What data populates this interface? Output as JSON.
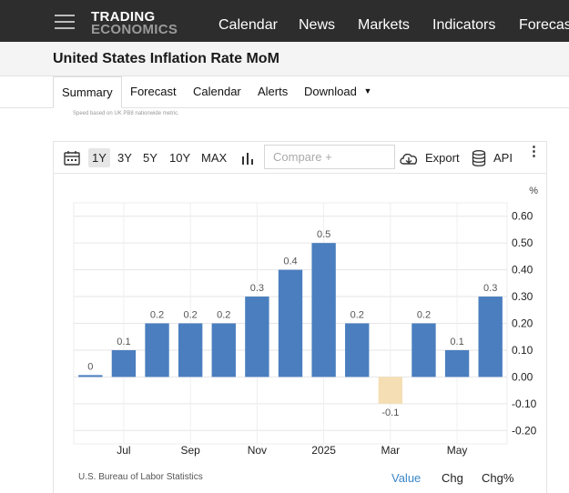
{
  "nav": {
    "logo_line1": "TRADING",
    "logo_line2": "ECONOMICS",
    "links": [
      "Calendar",
      "News",
      "Markets",
      "Indicators",
      "Forecas"
    ]
  },
  "page": {
    "title": "United States Inflation Rate MoM"
  },
  "tabs": [
    "Summary",
    "Forecast",
    "Calendar",
    "Alerts",
    "Download"
  ],
  "note": "Speed based on UK PB8 nationwide metric.",
  "toolbar": {
    "ranges": [
      "1Y",
      "3Y",
      "5Y",
      "10Y",
      "MAX"
    ],
    "selected_range": "1Y",
    "compare_placeholder": "Compare +",
    "export_label": "Export",
    "api_label": "API"
  },
  "chart_data": {
    "type": "bar",
    "unit": "%",
    "ylim": [
      -0.2,
      0.6
    ],
    "yticks": [
      "0.60",
      "0.50",
      "0.40",
      "0.30",
      "0.20",
      "0.10",
      "0.00",
      "-0.10",
      "-0.20"
    ],
    "x_tick_labels": [
      "Jul",
      "Sep",
      "Nov",
      "2025",
      "Mar",
      "May"
    ],
    "values": [
      0.0,
      0.1,
      0.2,
      0.2,
      0.2,
      0.3,
      0.4,
      0.5,
      0.2,
      -0.1,
      0.2,
      0.1,
      0.3
    ],
    "data_labels": [
      "0",
      "0.1",
      "0.2",
      "0.2",
      "0.2",
      "0.3",
      "0.4",
      "0.5",
      "0.2",
      "-0.1",
      "0.2",
      "0.1",
      "0.3"
    ],
    "colors": {
      "positive": "#4a7ebf",
      "negative": "#f5deb3"
    },
    "grid": true
  },
  "footer": {
    "source": "U.S. Bureau of Labor Statistics",
    "buttons": [
      "Value",
      "Chg",
      "Chg%"
    ],
    "active": "Value"
  },
  "colors": {
    "nav_bg": "#2d2d2d",
    "accent": "#3a86c8"
  }
}
